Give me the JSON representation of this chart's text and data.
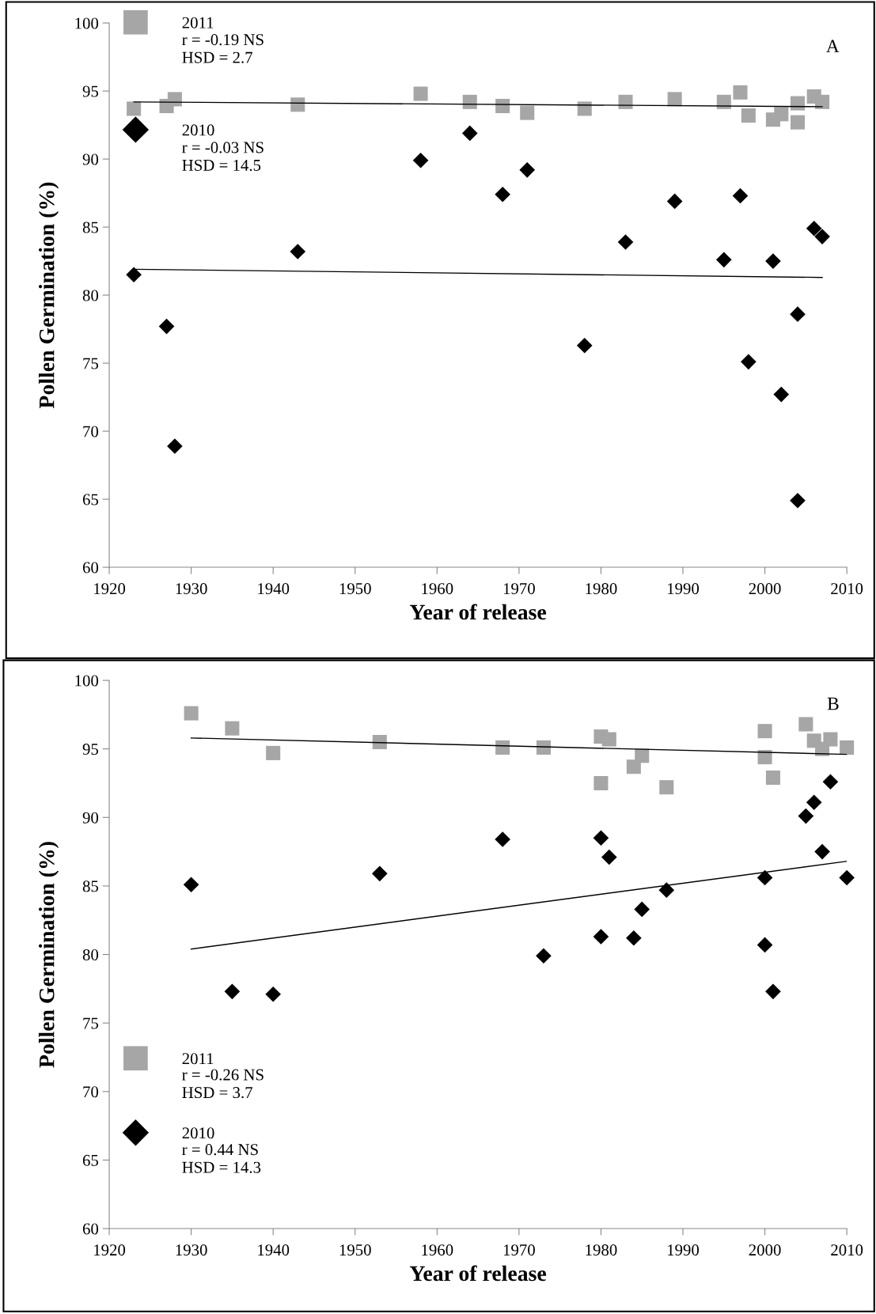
{
  "chart_data": [
    {
      "type": "scatter",
      "title": "A",
      "xlabel": "Year of release",
      "ylabel": "Pollen Germination (%)",
      "xlim": [
        1920,
        2010
      ],
      "xticks": [
        1920,
        1930,
        1940,
        1950,
        1960,
        1970,
        1980,
        1990,
        2000,
        2010
      ],
      "ylim": [
        60,
        100
      ],
      "yticks": [
        60,
        65,
        70,
        75,
        80,
        85,
        90,
        95,
        100
      ],
      "grid": false,
      "legend": "top left",
      "annotations": [
        "r = -0.19 NS\nHSD = 2.7",
        "r = -0.03 NS\nHSD = 14.5"
      ],
      "series": [
        {
          "name": "2011",
          "color": "#a6a6a6",
          "marker": "square",
          "x": [
            1923,
            1927,
            1928,
            1943,
            1958,
            1964,
            1968,
            1971,
            1978,
            1983,
            1989,
            1995,
            1997,
            1998,
            2001,
            2002,
            2004,
            2004,
            2006,
            2007
          ],
          "values": [
            93.7,
            93.9,
            94.4,
            94.0,
            94.8,
            94.2,
            93.9,
            93.4,
            93.7,
            94.2,
            94.4,
            94.2,
            94.9,
            93.2,
            92.9,
            93.3,
            92.7,
            94.1,
            94.6,
            94.2
          ]
        },
        {
          "name": "2010",
          "color": "#000000",
          "marker": "diamond",
          "x": [
            1923,
            1927,
            1928,
            1943,
            1958,
            1964,
            1968,
            1971,
            1978,
            1983,
            1989,
            1995,
            1997,
            1998,
            2001,
            2002,
            2004,
            2004,
            2006,
            2007
          ],
          "values": [
            81.5,
            77.7,
            68.9,
            83.2,
            89.9,
            91.9,
            87.4,
            89.2,
            76.3,
            83.9,
            86.9,
            82.6,
            87.3,
            75.1,
            82.5,
            72.7,
            78.6,
            64.9,
            84.9,
            84.3
          ]
        },
        {
          "type": "line",
          "color": "#000000",
          "marker": "none",
          "x": [
            1923,
            2007
          ],
          "values": [
            94.2,
            93.85
          ]
        },
        {
          "type": "line",
          "color": "#000000",
          "marker": "none",
          "x": [
            1923,
            2007
          ],
          "values": [
            81.9,
            81.3
          ]
        }
      ]
    },
    {
      "type": "scatter",
      "title": "B",
      "xlabel": "Year of release",
      "ylabel": "Pollen Germination (%)",
      "xlim": [
        1920,
        2010
      ],
      "xticks": [
        1920,
        1930,
        1940,
        1950,
        1960,
        1970,
        1980,
        1990,
        2000,
        2010
      ],
      "ylim": [
        60,
        100
      ],
      "yticks": [
        60,
        65,
        70,
        75,
        80,
        85,
        90,
        95,
        100
      ],
      "grid": false,
      "legend": "bottom left",
      "annotations": [
        "r = -0.26 NS\nHSD = 3.7",
        "r = 0.44 NS\nHSD = 14.3"
      ],
      "series": [
        {
          "name": "2011",
          "color": "#a6a6a6",
          "marker": "square",
          "x": [
            1930,
            1935,
            1940,
            1953,
            1968,
            1973,
            1980,
            1981,
            1980,
            1984,
            1985,
            1988,
            2000,
            2000,
            2001,
            2005,
            2006,
            2007,
            2008,
            2010
          ],
          "values": [
            97.6,
            96.5,
            94.7,
            95.5,
            95.1,
            95.1,
            95.9,
            95.7,
            92.5,
            93.7,
            94.5,
            92.2,
            96.3,
            94.4,
            92.9,
            96.8,
            95.6,
            95.0,
            95.7,
            95.1
          ]
        },
        {
          "name": "2010",
          "color": "#000000",
          "marker": "diamond",
          "x": [
            1930,
            1935,
            1940,
            1953,
            1968,
            1973,
            1980,
            1981,
            1980,
            1984,
            1985,
            1988,
            2000,
            2000,
            2001,
            2005,
            2006,
            2007,
            2008,
            2010
          ],
          "values": [
            85.1,
            77.3,
            77.1,
            85.9,
            88.4,
            79.9,
            88.5,
            87.1,
            81.3,
            81.2,
            83.3,
            84.7,
            85.6,
            80.7,
            77.3,
            90.1,
            91.1,
            87.5,
            92.6,
            85.6
          ]
        },
        {
          "type": "line",
          "color": "#000000",
          "marker": "none",
          "x": [
            1930,
            2010
          ],
          "values": [
            95.8,
            94.6
          ]
        },
        {
          "type": "line",
          "color": "#000000",
          "marker": "none",
          "x": [
            1930,
            2010
          ],
          "values": [
            80.4,
            86.8
          ]
        }
      ]
    }
  ]
}
